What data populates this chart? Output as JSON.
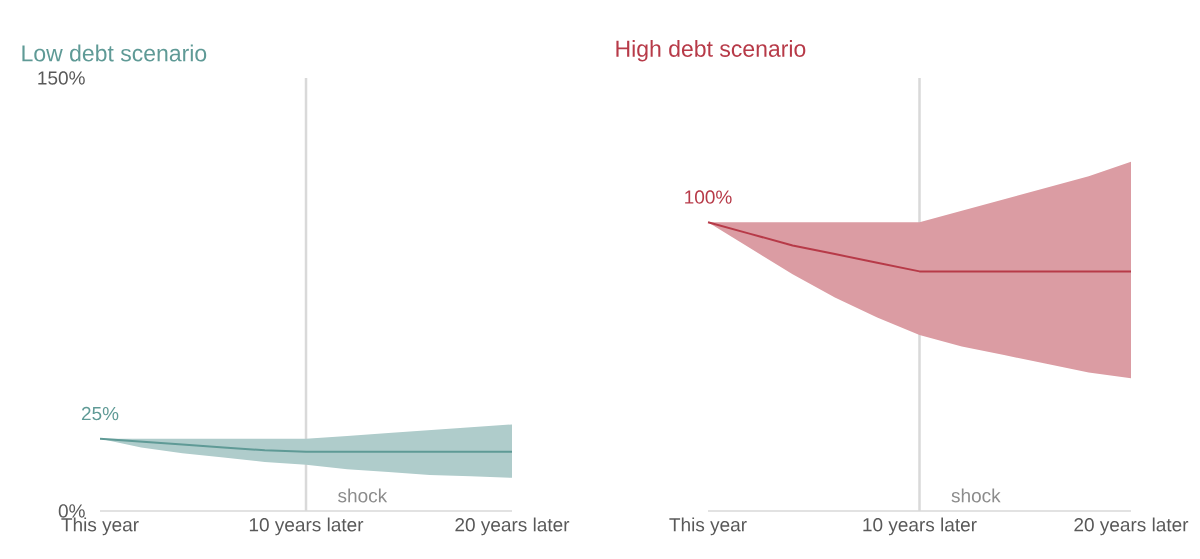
{
  "chart_data": [
    {
      "type": "line",
      "title": "Low debt scenario",
      "x": [
        0,
        2,
        4,
        6,
        8,
        10,
        12,
        14,
        16,
        18,
        20
      ],
      "xlim": [
        0,
        20
      ],
      "xticks": [
        {
          "value": 0,
          "label": "This year"
        },
        {
          "value": 10,
          "label": "10 years later"
        },
        {
          "value": 20,
          "label": "20 years later"
        }
      ],
      "ylim": [
        0,
        150
      ],
      "yticks": [
        {
          "value": 0,
          "label": "0%"
        },
        {
          "value": 150,
          "label": "150%"
        }
      ],
      "series": [
        {
          "color": "#5f9a96",
          "values": [
            25,
            24,
            23,
            22,
            21,
            20.5,
            20.5,
            20.5,
            20.5,
            20.5,
            20.5
          ],
          "lower": [
            25,
            22,
            20,
            18.5,
            17,
            16,
            14.5,
            13.5,
            12.5,
            12,
            11.5
          ],
          "upper": [
            25,
            25,
            25,
            25,
            25,
            25,
            26,
            27,
            28,
            29,
            30
          ]
        }
      ],
      "ref_lines": [
        {
          "axis": "x",
          "value": 10,
          "label": "shock",
          "color": "#d9d9d9"
        }
      ],
      "annotations": [
        {
          "text": "25%",
          "x": 0,
          "y": 25
        }
      ]
    },
    {
      "type": "line",
      "title": "High debt scenario",
      "x": [
        0,
        2,
        4,
        6,
        8,
        10,
        12,
        14,
        16,
        18,
        20
      ],
      "xlim": [
        0,
        20
      ],
      "xticks": [
        {
          "value": 0,
          "label": "This year"
        },
        {
          "value": 10,
          "label": "10 years later"
        },
        {
          "value": 20,
          "label": "20 years later"
        }
      ],
      "ylim": [
        0,
        150
      ],
      "tick_labels": "x",
      "series": [
        {
          "color": "#b73a48",
          "values": [
            100,
            96,
            92,
            89,
            86,
            83,
            83,
            83,
            83,
            83,
            83
          ],
          "lower": [
            100,
            91,
            82,
            74,
            67,
            61,
            57,
            54,
            51,
            48,
            46
          ],
          "upper": [
            100,
            100,
            100,
            100,
            100,
            100,
            104,
            108,
            112,
            116,
            121
          ]
        }
      ],
      "ref_lines": [
        {
          "axis": "x",
          "value": 10,
          "label": "shock",
          "color": "#d9d9d9"
        }
      ],
      "annotations": [
        {
          "text": "100%",
          "x": 0,
          "y": 100
        }
      ]
    }
  ]
}
